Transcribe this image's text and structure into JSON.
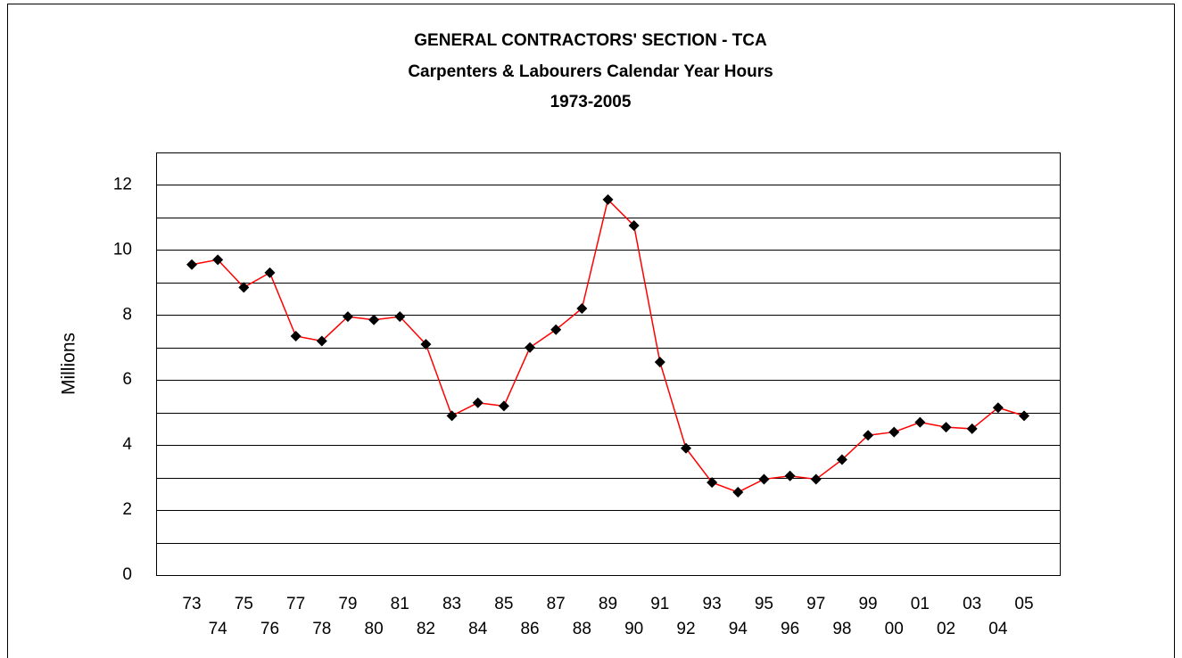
{
  "chart_data": {
    "type": "line",
    "title_lines": [
      "GENERAL CONTRACTORS' SECTION - TCA",
      "Carpenters & Labourers Calendar Year Hours",
      "1973-2005"
    ],
    "y_label": "Millions",
    "categories": [
      "73",
      "74",
      "75",
      "76",
      "77",
      "78",
      "79",
      "80",
      "81",
      "82",
      "83",
      "84",
      "85",
      "86",
      "87",
      "88",
      "89",
      "90",
      "91",
      "92",
      "93",
      "94",
      "95",
      "96",
      "97",
      "98",
      "99",
      "00",
      "01",
      "02",
      "03",
      "04",
      "05"
    ],
    "series": [
      {
        "color": "#ff0000",
        "marker_color": "#000000",
        "values": [
          9.55,
          9.7,
          8.85,
          9.3,
          7.35,
          7.2,
          7.95,
          7.85,
          7.95,
          7.1,
          4.9,
          5.3,
          5.2,
          7.0,
          7.55,
          8.2,
          11.55,
          10.75,
          6.55,
          3.9,
          2.85,
          2.55,
          2.95,
          3.05,
          2.95,
          3.55,
          4.3,
          4.4,
          4.7,
          4.55,
          4.5,
          5.15,
          4.9
        ]
      }
    ],
    "ylim": [
      0,
      13
    ],
    "yticks": [
      0,
      2,
      4,
      6,
      8,
      10,
      12
    ],
    "minor_yticks": [
      1,
      3,
      5,
      7,
      9,
      11,
      13
    ],
    "grid": true
  }
}
